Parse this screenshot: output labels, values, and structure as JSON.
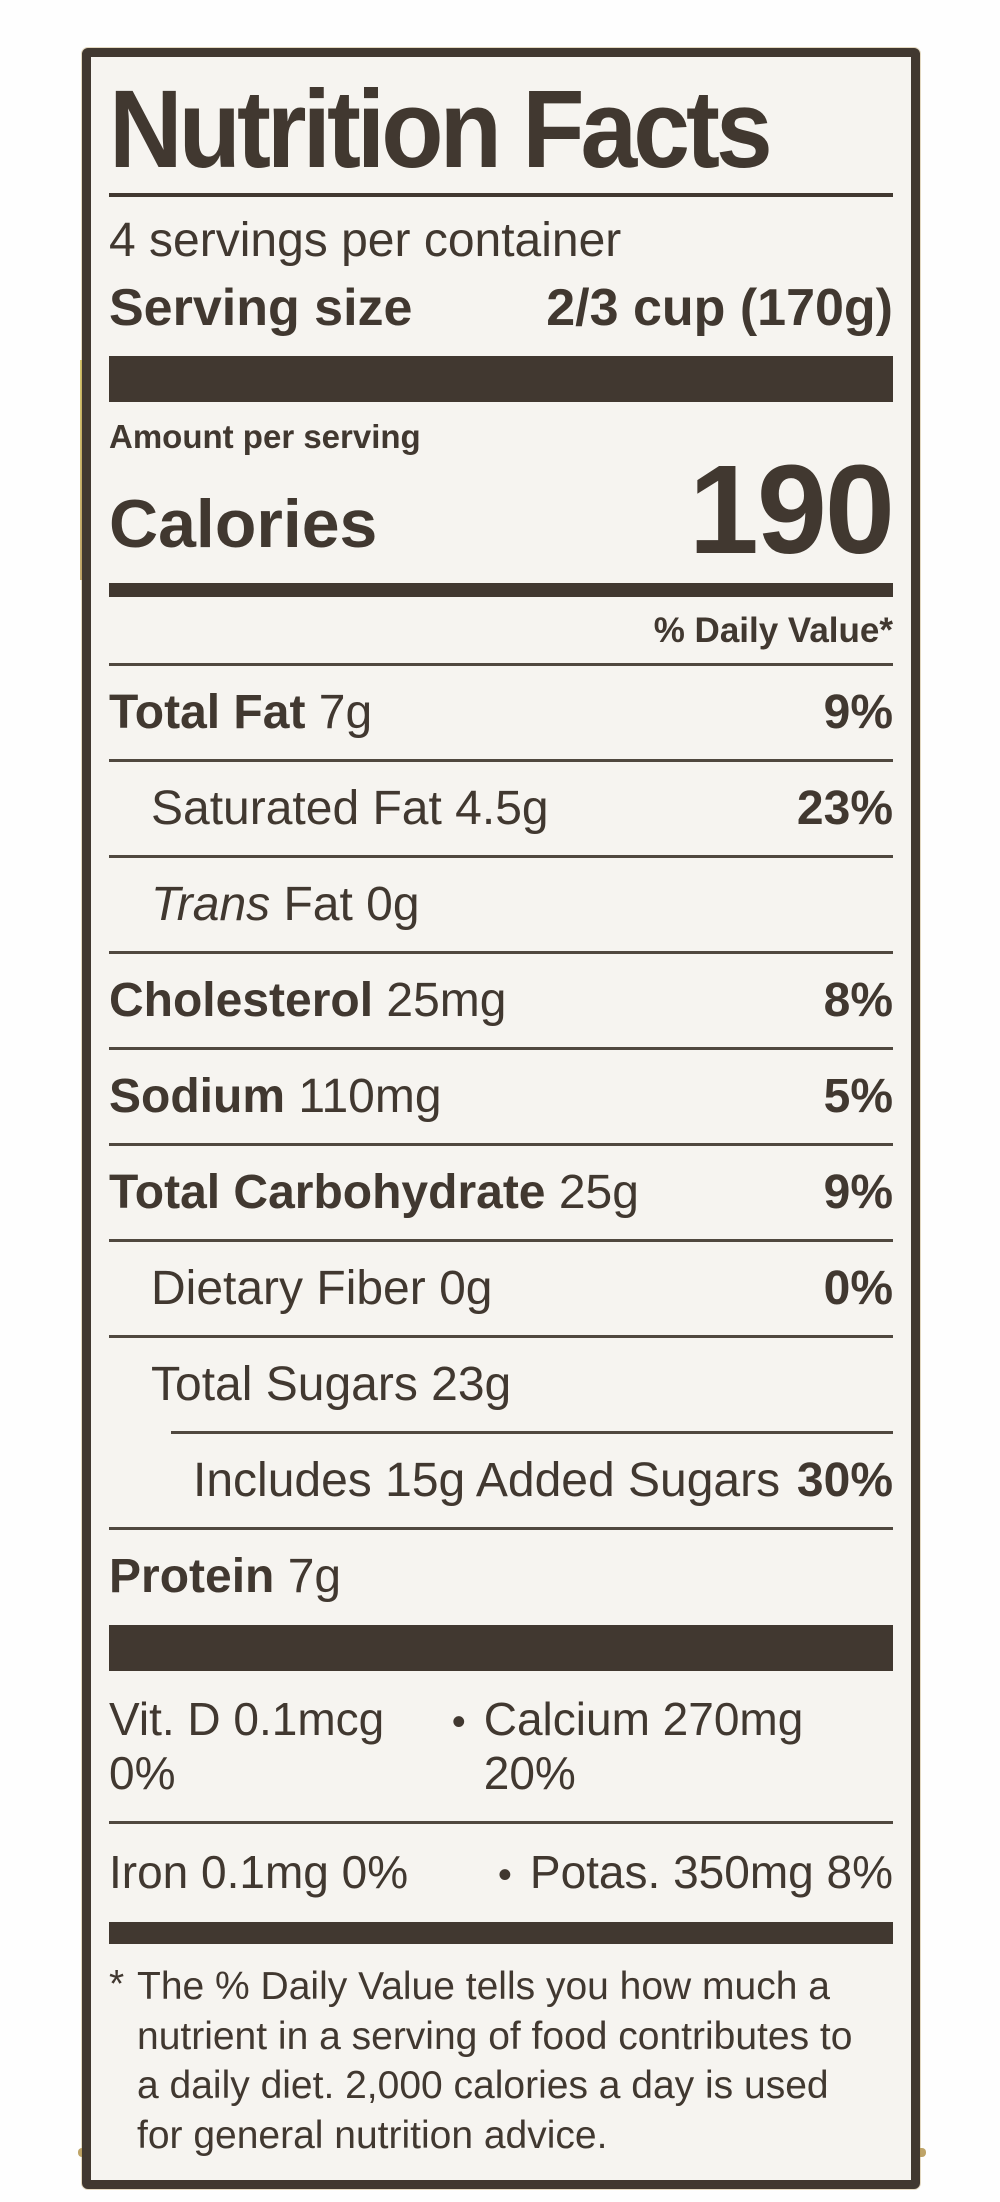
{
  "nutrition_label": {
    "title": "Nutrition Facts",
    "servings_per_container": "4 servings per container",
    "serving_size": {
      "label": "Serving size",
      "value": "2/3 cup (170g)"
    },
    "amount_per_serving": "Amount per serving",
    "calories": {
      "label": "Calories",
      "value": "190"
    },
    "daily_value_header": "% Daily Value*",
    "nutrient_rows": [
      {
        "indent": 0,
        "separator": "full",
        "parts": [
          {
            "text": "Total Fat",
            "bold": true
          },
          {
            "text": " 7g"
          }
        ],
        "dv": "9%"
      },
      {
        "indent": 1,
        "separator": "full",
        "parts": [
          {
            "text": "Saturated Fat 4.5g"
          }
        ],
        "dv": "23%"
      },
      {
        "indent": 1,
        "separator": "full",
        "parts": [
          {
            "text": "Trans",
            "italic": true
          },
          {
            "text": " Fat 0g"
          }
        ],
        "dv": ""
      },
      {
        "indent": 0,
        "separator": "full",
        "parts": [
          {
            "text": "Cholesterol",
            "bold": true
          },
          {
            "text": " 25mg"
          }
        ],
        "dv": "8%"
      },
      {
        "indent": 0,
        "separator": "full",
        "parts": [
          {
            "text": "Sodium",
            "bold": true
          },
          {
            "text": " 110mg"
          }
        ],
        "dv": "5%"
      },
      {
        "indent": 0,
        "separator": "full",
        "parts": [
          {
            "text": "Total Carbohydrate",
            "bold": true
          },
          {
            "text": " 25g"
          }
        ],
        "dv": "9%"
      },
      {
        "indent": 1,
        "separator": "full",
        "parts": [
          {
            "text": "Dietary Fiber 0g"
          }
        ],
        "dv": "0%"
      },
      {
        "indent": 1,
        "separator": "full",
        "parts": [
          {
            "text": "Total Sugars 23g"
          }
        ],
        "dv": ""
      },
      {
        "indent": 2,
        "separator": "indented",
        "parts": [
          {
            "text": "Includes 15g Added Sugars"
          }
        ],
        "dv": "30%"
      },
      {
        "indent": 0,
        "separator": "full",
        "parts": [
          {
            "text": "Protein",
            "bold": true
          },
          {
            "text": " 7g"
          }
        ],
        "dv": ""
      }
    ],
    "micronutrient_rows": [
      {
        "left": "Vit. D 0.1mcg 0%",
        "bullet": "•",
        "right": "Calcium 270mg 20%"
      },
      {
        "left": "Iron 0.1mg 0%",
        "bullet": "•",
        "right": "Potas. 350mg 8%"
      }
    ],
    "footnote_marker": "*",
    "footnote_text": "The % Daily Value tells you how much a nutrient in a serving of food contributes to a daily diet. 2,000 calories a day is used for general nutrition advice.",
    "colors": {
      "ink": "#413830",
      "paper": "#f6f4f0",
      "gold_edge": "#b3944e"
    }
  }
}
